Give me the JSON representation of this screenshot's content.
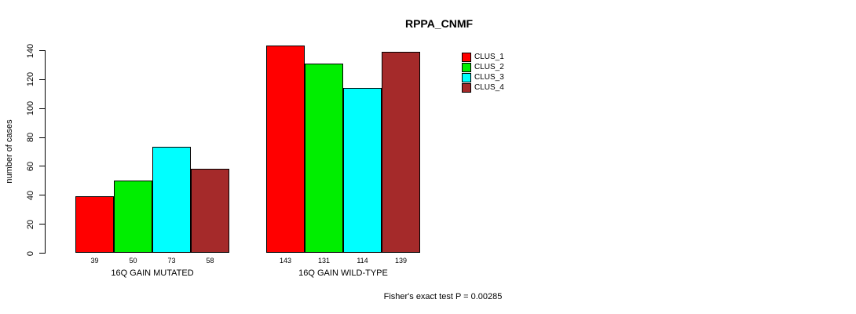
{
  "title": "RPPA_CNMF",
  "y_axis": {
    "label": "number of cases",
    "ticks": [
      0,
      20,
      40,
      60,
      80,
      100,
      120,
      140
    ],
    "range": [
      0,
      140
    ]
  },
  "annotation": "Fisher's exact test P = 0.00285",
  "colors": {
    "clus_1": "#ff0000",
    "clus_2": "#00ee00",
    "clus_3": "#00ffff",
    "clus_4": "#a52a2a",
    "axis": "#000000",
    "bar_border": "#000000",
    "background": "#ffffff"
  },
  "chart_data": {
    "type": "bar",
    "title": "RPPA_CNMF",
    "ylabel": "number of cases",
    "xlabel": "",
    "categories": [
      "16Q GAIN MUTATED",
      "16Q GAIN WILD-TYPE"
    ],
    "series": [
      {
        "name": "CLUS_1",
        "color": "#ff0000",
        "values": [
          39,
          143
        ]
      },
      {
        "name": "CLUS_2",
        "color": "#00ee00",
        "values": [
          50,
          131
        ]
      },
      {
        "name": "CLUS_3",
        "color": "#00ffff",
        "values": [
          73,
          114
        ]
      },
      {
        "name": "CLUS_4",
        "color": "#a52a2a",
        "values": [
          58,
          139
        ]
      }
    ],
    "bar_value_labels": [
      [
        "39",
        "50",
        "73",
        "58"
      ],
      [
        "143",
        "131",
        "114",
        "139"
      ]
    ],
    "ylim": [
      0,
      140
    ],
    "yticks": [
      0,
      20,
      40,
      60,
      80,
      100,
      120,
      140
    ],
    "grid": false,
    "legend_position": "top-right",
    "legend_entries": [
      "CLUS_1",
      "CLUS_2",
      "CLUS_3",
      "CLUS_4"
    ],
    "annotation": "Fisher's exact test P = 0.00285"
  }
}
